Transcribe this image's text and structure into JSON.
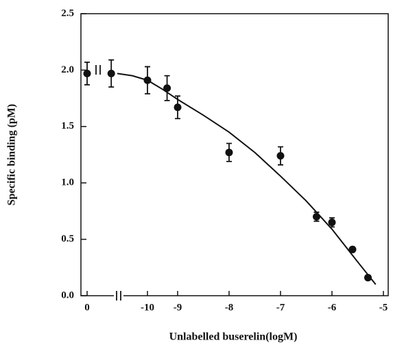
{
  "chart_data": {
    "type": "scatter",
    "x_label": "Unlabelled buserelin(logM)",
    "y_label": "Specific binding (pM)",
    "xlim": [
      0,
      -5
    ],
    "ylim": [
      0,
      2.5
    ],
    "xticks": [
      0,
      -10,
      -9,
      -8,
      -7,
      -6,
      -5
    ],
    "yticks": [
      {
        "value": 0,
        "label": "0.0"
      },
      {
        "value": 0.5,
        "label": "0.5"
      },
      {
        "value": 1,
        "label": "1.0"
      },
      {
        "value": 1.5,
        "label": "1.5"
      },
      {
        "value": 2,
        "label": "2.0"
      },
      {
        "value": 2.5,
        "label": "2.5"
      }
    ],
    "color": "#111111",
    "x": [
      0,
      -11.2,
      -10,
      -9.35,
      -9,
      -8,
      -7,
      -6.3,
      -6,
      -5.6,
      -5.3
    ],
    "values": [
      1.97,
      1.97,
      1.91,
      1.84,
      1.67,
      1.27,
      1.24,
      0.7,
      0.65,
      0.41,
      0.16
    ],
    "errors": [
      0.1,
      0.12,
      0.12,
      0.11,
      0.1,
      0.08,
      0.08,
      0.04,
      0.04,
      0.02,
      0.02
    ],
    "fit": {
      "x": [
        -11,
        -10.5,
        -10,
        -9.5,
        -9,
        -8.5,
        -8,
        -7.5,
        -7,
        -6.5,
        -6,
        -5.5,
        -5.15
      ],
      "values": [
        1.97,
        1.95,
        1.91,
        1.83,
        1.74,
        1.6,
        1.45,
        1.27,
        1.06,
        0.84,
        0.59,
        0.3,
        0.1
      ]
    }
  }
}
